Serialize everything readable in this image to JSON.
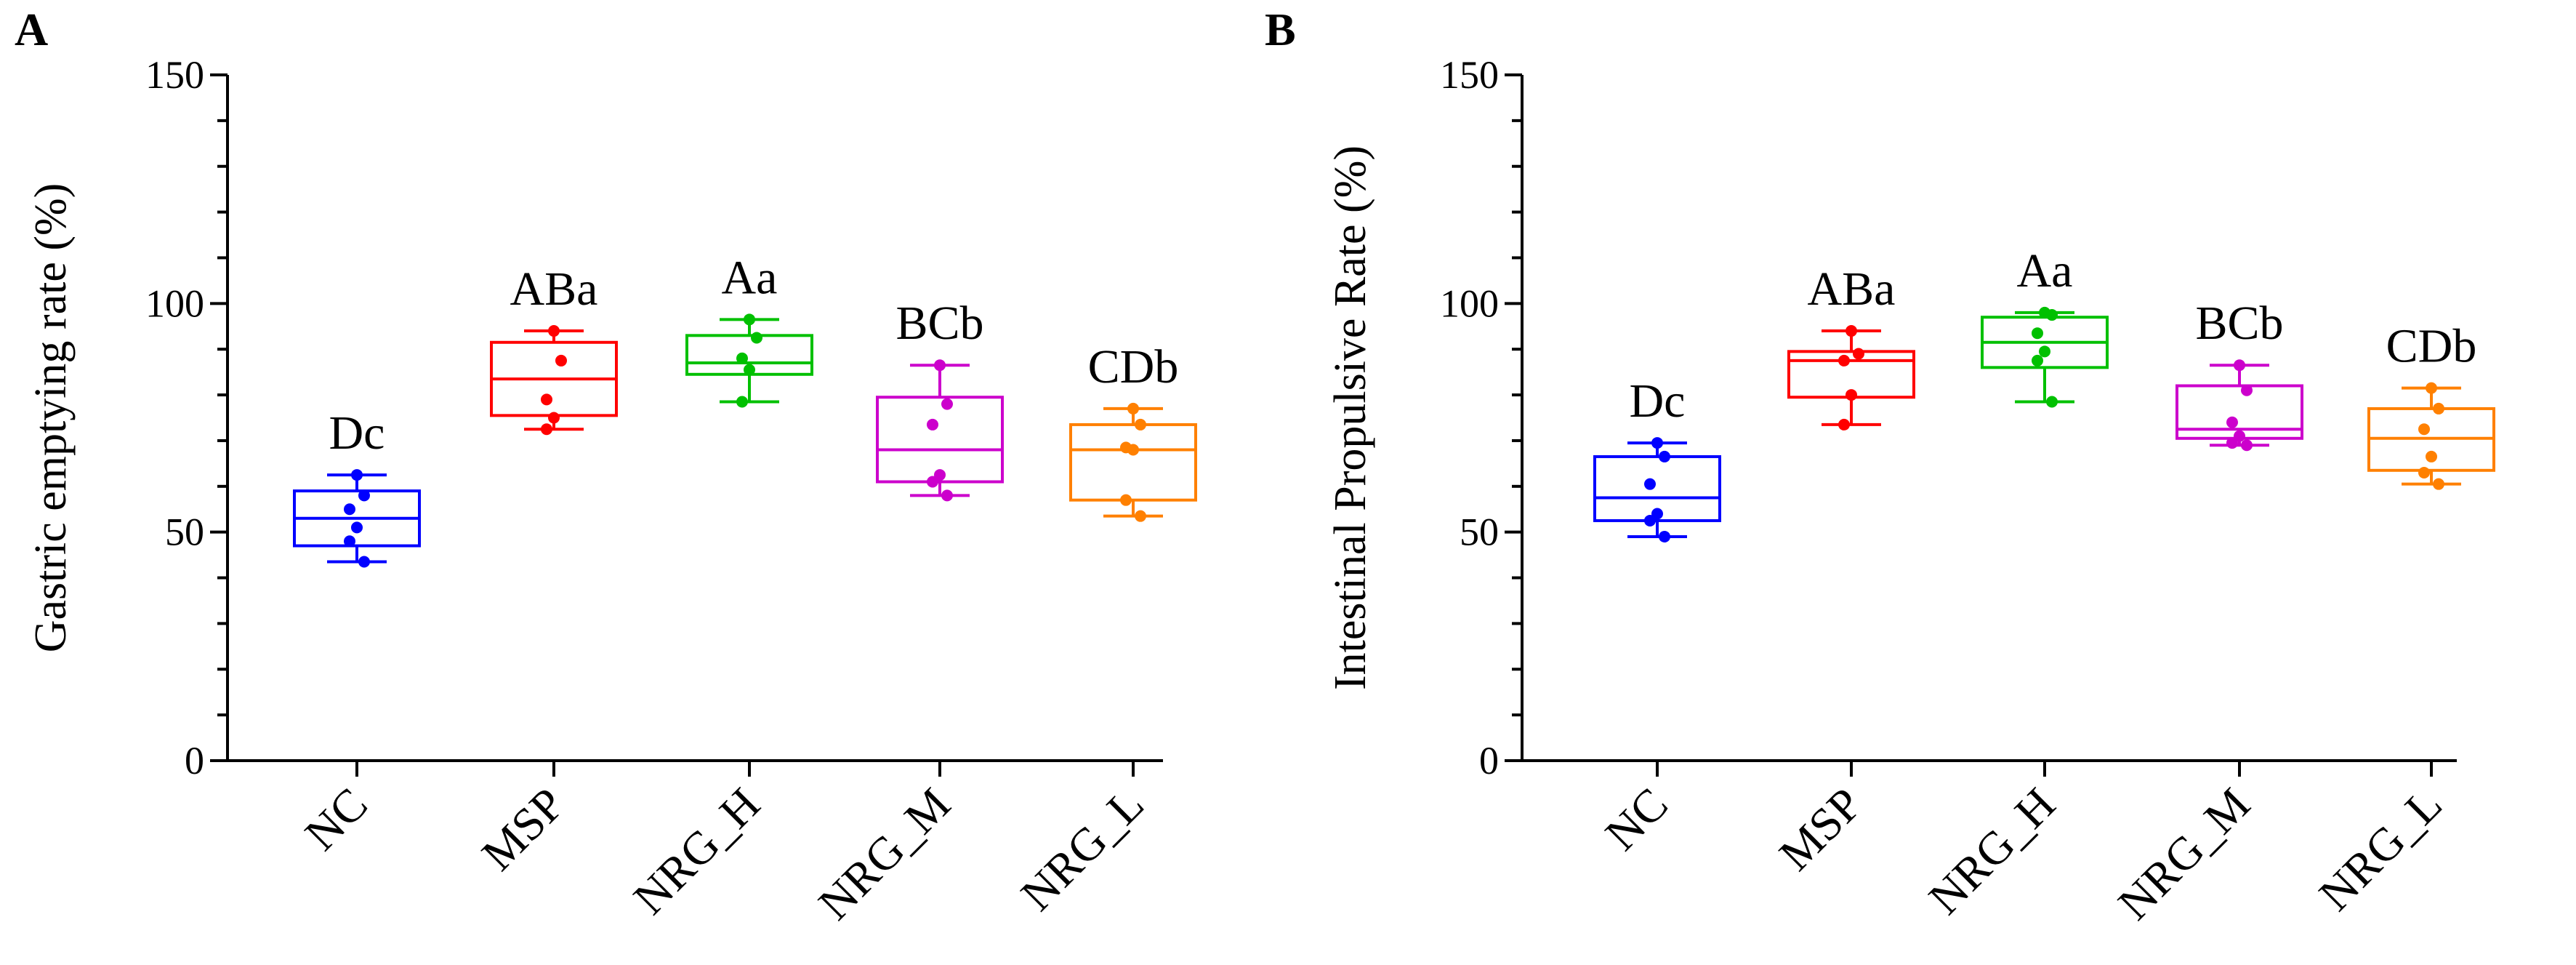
{
  "chart_data": [
    {
      "type": "box",
      "panel_label": "A",
      "title": "",
      "xlabel": "",
      "ylabel": "Gastric emptying rate (%)",
      "ylim": [
        0,
        150
      ],
      "yticks": [
        "0",
        "50",
        "100",
        "150"
      ],
      "grid": false,
      "categories": [
        "NC",
        "MSP",
        "NRG_H",
        "NRG_M",
        "NRG_L"
      ],
      "series": [
        {
          "category": "NC",
          "color": "#0000ff",
          "min": 43.5,
          "q1": 47,
          "median": 53,
          "q3": 59,
          "max": 62.5,
          "points": [
            62.5,
            58,
            55,
            51,
            48,
            43.5
          ],
          "significance": "Dc"
        },
        {
          "category": "MSP",
          "color": "#ff0000",
          "min": 72.5,
          "q1": 75.5,
          "median": 83.5,
          "q3": 91.5,
          "max": 94,
          "points": [
            94,
            87.5,
            79,
            75,
            72.5
          ],
          "significance": "ABa"
        },
        {
          "category": "NRG_H",
          "color": "#00c000",
          "min": 78.5,
          "q1": 84.5,
          "median": 87,
          "q3": 93,
          "max": 96.5,
          "points": [
            96.5,
            92.5,
            88,
            85.5,
            78.5
          ],
          "significance": "Aa"
        },
        {
          "category": "NRG_M",
          "color": "#cc00cc",
          "min": 58,
          "q1": 61,
          "median": 68,
          "q3": 79.5,
          "max": 86.5,
          "points": [
            86.5,
            78,
            73.5,
            62.5,
            61,
            58
          ],
          "significance": "BCb"
        },
        {
          "category": "NRG_L",
          "color": "#ff8000",
          "min": 53.5,
          "q1": 57,
          "median": 68,
          "q3": 73.5,
          "max": 77,
          "points": [
            77,
            73.5,
            68.5,
            68,
            57,
            53.5
          ],
          "significance": "CDb"
        }
      ]
    },
    {
      "type": "box",
      "panel_label": "B",
      "title": "",
      "xlabel": "",
      "ylabel": "Intestinal Propulsive Rate (%)",
      "ylim": [
        0,
        150
      ],
      "yticks": [
        "0",
        "50",
        "100",
        "150"
      ],
      "grid": false,
      "categories": [
        "NC",
        "MSP",
        "NRG_H",
        "NRG_M",
        "NRG_L"
      ],
      "series": [
        {
          "category": "NC",
          "color": "#0000ff",
          "min": 49,
          "q1": 52.5,
          "median": 57.5,
          "q3": 66.5,
          "max": 69.5,
          "points": [
            69.5,
            66.5,
            60.5,
            54,
            52.5,
            49
          ],
          "significance": "Dc"
        },
        {
          "category": "MSP",
          "color": "#ff0000",
          "min": 73.5,
          "q1": 79.5,
          "median": 87.5,
          "q3": 89.5,
          "max": 94,
          "points": [
            94,
            89,
            87.5,
            80,
            73.5
          ],
          "significance": "ABa"
        },
        {
          "category": "NRG_H",
          "color": "#00c000",
          "min": 78.5,
          "q1": 86,
          "median": 91.5,
          "q3": 97,
          "max": 98,
          "points": [
            98,
            97.5,
            93.5,
            89.5,
            87.5,
            78.5
          ],
          "significance": "Aa"
        },
        {
          "category": "NRG_M",
          "color": "#cc00cc",
          "min": 69,
          "q1": 70.5,
          "median": 72.5,
          "q3": 82,
          "max": 86.5,
          "points": [
            86.5,
            81,
            74,
            71,
            69.5,
            69
          ],
          "significance": "BCb"
        },
        {
          "category": "NRG_L",
          "color": "#ff8000",
          "min": 60.5,
          "q1": 63.5,
          "median": 70.5,
          "q3": 77,
          "max": 81.5,
          "points": [
            81.5,
            77,
            72.5,
            66.5,
            63,
            60.5
          ],
          "significance": "CDb"
        }
      ]
    }
  ]
}
